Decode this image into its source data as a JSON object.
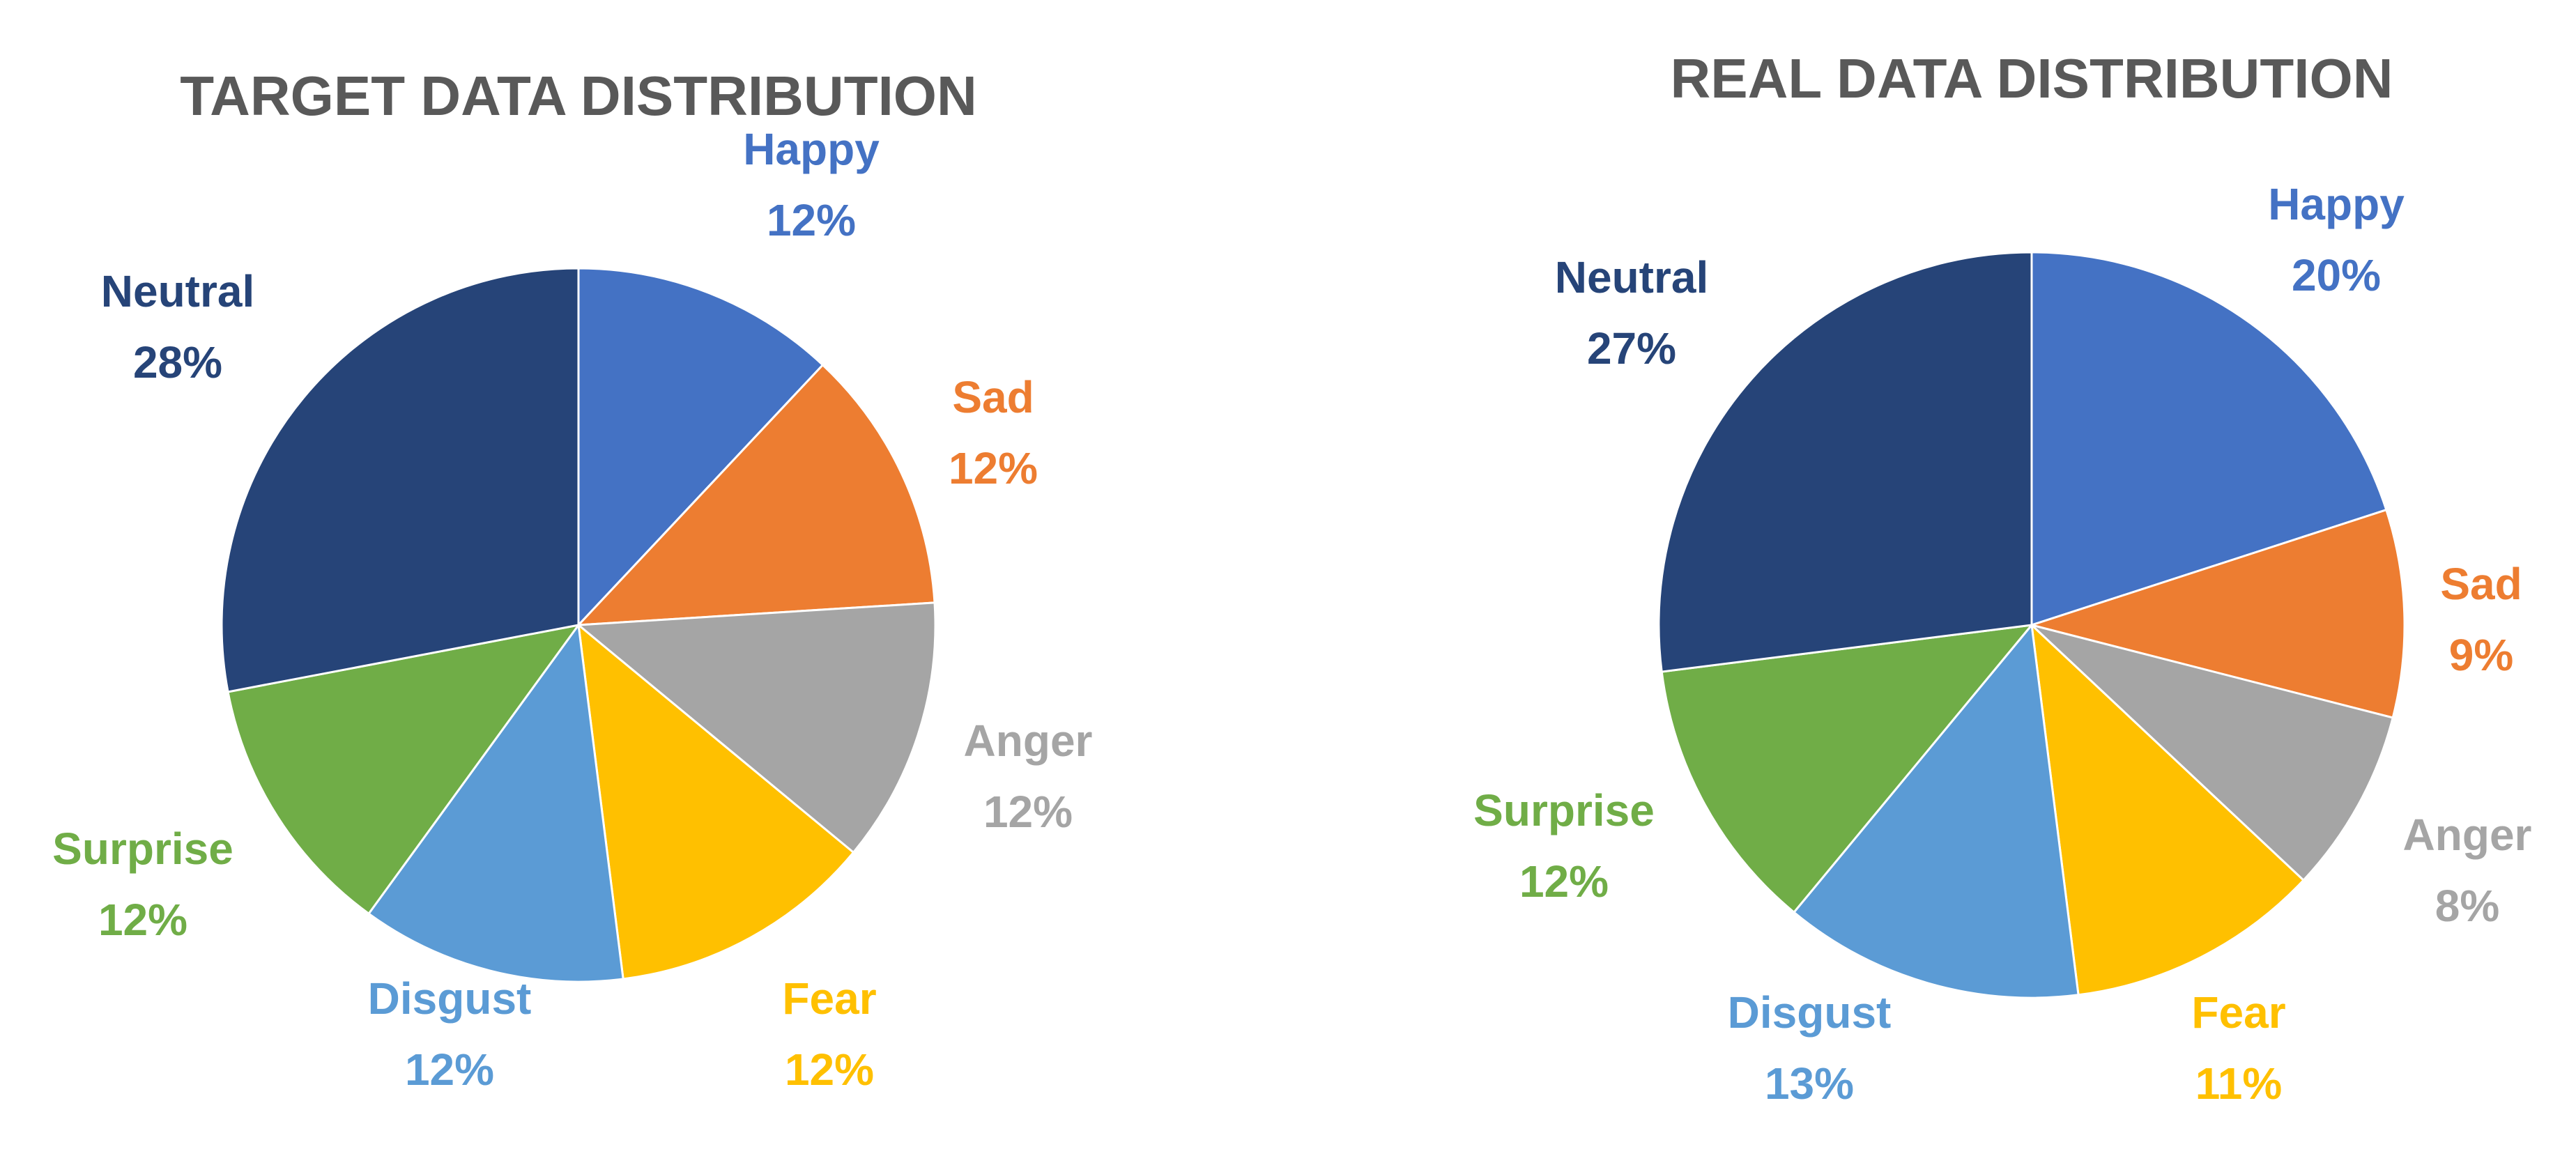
{
  "chart_data": [
    {
      "type": "pie",
      "title": "TARGET DATA DISTRIBUTION",
      "start_angle": "12 o'clock, clockwise",
      "slices": [
        {
          "label": "Happy",
          "value": 12,
          "value_label": "12%",
          "color": "#4472C4"
        },
        {
          "label": "Sad",
          "value": 12,
          "value_label": "12%",
          "color": "#ED7D31"
        },
        {
          "label": "Anger",
          "value": 12,
          "value_label": "12%",
          "color": "#A5A5A5"
        },
        {
          "label": "Fear",
          "value": 12,
          "value_label": "12%",
          "color": "#FFC000"
        },
        {
          "label": "Disgust",
          "value": 12,
          "value_label": "12%",
          "color": "#5B9BD5"
        },
        {
          "label": "Surprise",
          "value": 12,
          "value_label": "12%",
          "color": "#70AD47"
        },
        {
          "label": "Neutral",
          "value": 28,
          "value_label": "28%",
          "color": "#264478"
        }
      ]
    },
    {
      "type": "pie",
      "title": "REAL DATA DISTRIBUTION",
      "start_angle": "12 o'clock, clockwise",
      "slices": [
        {
          "label": "Happy",
          "value": 20,
          "value_label": "20%",
          "color": "#4472C4"
        },
        {
          "label": "Sad",
          "value": 9,
          "value_label": "9%",
          "color": "#ED7D31"
        },
        {
          "label": "Anger",
          "value": 8,
          "value_label": "8%",
          "color": "#A5A5A5"
        },
        {
          "label": "Fear",
          "value": 11,
          "value_label": "11%",
          "color": "#FFC000"
        },
        {
          "label": "Disgust",
          "value": 13,
          "value_label": "13%",
          "color": "#5B9BD5"
        },
        {
          "label": "Surprise",
          "value": 12,
          "value_label": "12%",
          "color": "#70AD47"
        },
        {
          "label": "Neutral",
          "value": 27,
          "value_label": "27%",
          "color": "#264478"
        }
      ]
    }
  ]
}
